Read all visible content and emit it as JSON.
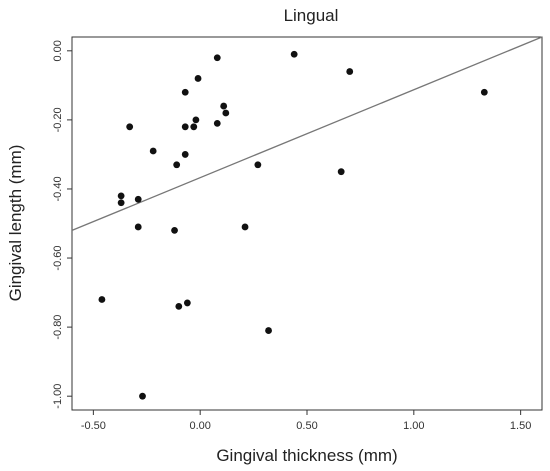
{
  "chart_data": {
    "type": "scatter",
    "title": "Lingual",
    "xlabel": "Gingival thickness (mm)",
    "ylabel": "Gingival length (mm)",
    "xlim": [
      -0.6,
      1.6
    ],
    "ylim": [
      -1.04,
      0.04
    ],
    "x_ticks": [
      -0.5,
      0.0,
      0.5,
      1.0,
      1.5
    ],
    "x_tick_labels": [
      "-0.50",
      "0.00",
      "0.50",
      "1.00",
      "1.50"
    ],
    "y_ticks": [
      0.0,
      -0.2,
      -0.4,
      -0.6,
      -0.8,
      -1.0
    ],
    "y_tick_labels": [
      "0.00",
      "-0.20",
      "-0.40",
      "-0.60",
      "-0.80",
      "-1.00"
    ],
    "grid": false,
    "fit_line": {
      "x": [
        -0.6,
        1.6
      ],
      "y": [
        -0.52,
        0.04
      ]
    },
    "points": [
      {
        "x": -0.46,
        "y": -0.72
      },
      {
        "x": -0.37,
        "y": -0.42
      },
      {
        "x": -0.37,
        "y": -0.44
      },
      {
        "x": -0.33,
        "y": -0.22
      },
      {
        "x": -0.29,
        "y": -0.43
      },
      {
        "x": -0.29,
        "y": -0.51
      },
      {
        "x": -0.27,
        "y": -1.0
      },
      {
        "x": -0.22,
        "y": -0.29
      },
      {
        "x": -0.12,
        "y": -0.52
      },
      {
        "x": -0.11,
        "y": -0.33
      },
      {
        "x": -0.1,
        "y": -0.74
      },
      {
        "x": -0.07,
        "y": -0.12
      },
      {
        "x": -0.07,
        "y": -0.22
      },
      {
        "x": -0.07,
        "y": -0.3
      },
      {
        "x": -0.06,
        "y": -0.73
      },
      {
        "x": -0.03,
        "y": -0.22
      },
      {
        "x": -0.02,
        "y": -0.2
      },
      {
        "x": -0.01,
        "y": -0.08
      },
      {
        "x": 0.08,
        "y": -0.02
      },
      {
        "x": 0.08,
        "y": -0.21
      },
      {
        "x": 0.11,
        "y": -0.16
      },
      {
        "x": 0.12,
        "y": -0.18
      },
      {
        "x": 0.21,
        "y": -0.51
      },
      {
        "x": 0.27,
        "y": -0.33
      },
      {
        "x": 0.32,
        "y": -0.81
      },
      {
        "x": 0.44,
        "y": -0.01
      },
      {
        "x": 0.66,
        "y": -0.35
      },
      {
        "x": 0.7,
        "y": -0.06
      },
      {
        "x": 1.33,
        "y": -0.12
      }
    ]
  }
}
